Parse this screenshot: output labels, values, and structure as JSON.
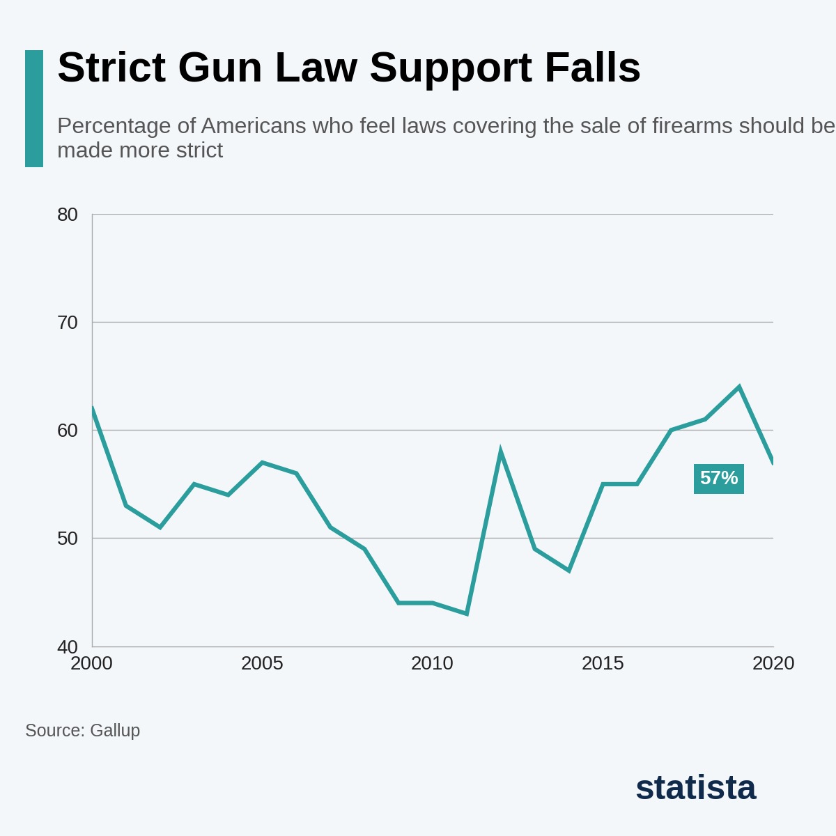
{
  "chart_data": {
    "type": "line",
    "title": "Strict Gun Law Support Falls",
    "subtitle": "Percentage of Americans who feel laws covering the sale of firearms should be made more strict",
    "x": [
      2000,
      2001,
      2002,
      2003,
      2004,
      2005,
      2006,
      2007,
      2008,
      2009,
      2010,
      2011,
      2012,
      2013,
      2014,
      2015,
      2016,
      2017,
      2018,
      2019,
      2020
    ],
    "values": [
      62,
      53,
      51,
      55,
      54,
      57,
      56,
      51,
      49,
      44,
      44,
      43,
      58,
      49,
      47,
      55,
      55,
      60,
      61,
      64,
      57
    ],
    "color": "#2a9d9c",
    "xlim": [
      2000,
      2020
    ],
    "xticks": [
      2000,
      2005,
      2010,
      2015,
      2020
    ],
    "ylim": [
      40,
      80
    ],
    "yticks": [
      40,
      50,
      60,
      70,
      80
    ],
    "grid": true,
    "annotations": [
      {
        "x": 2020,
        "y": 57,
        "text": "57%"
      }
    ],
    "source": "Source: Gallup",
    "brand": "statista"
  }
}
